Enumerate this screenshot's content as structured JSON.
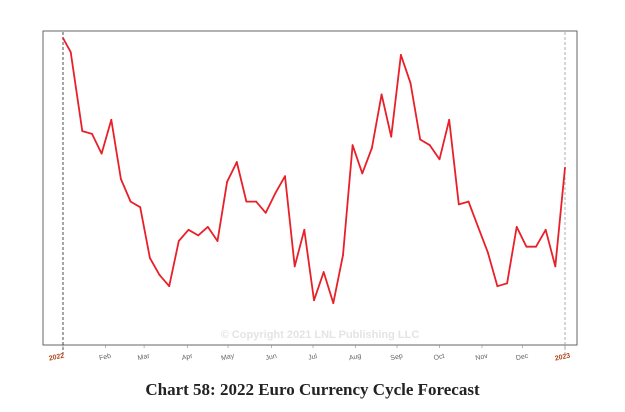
{
  "caption": "Chart 58: 2022 Euro Currency Cycle Forecast",
  "watermark": "© Copyright 2021 LNL Publishing LLC",
  "colors": {
    "line": "#e8202a",
    "year_label": "#b0441a",
    "month_label": "#666666",
    "frame": "#666666"
  },
  "chart_data": {
    "type": "line",
    "title": "Chart 58: 2022 Euro Currency Cycle Forecast",
    "xlabel": "",
    "ylabel": "",
    "y_axis_visible": false,
    "ylim": [
      0,
      100
    ],
    "grid": false,
    "legend": "none",
    "x_ticks": [
      "2022",
      "Feb",
      "Mar",
      "Apr",
      "May",
      "Jun",
      "Jul",
      "Aug",
      "Sep",
      "Oct",
      "Nov",
      "Dec",
      "2023"
    ],
    "x_tick_weeks": [
      0,
      4.4,
      8.4,
      12.9,
      17.1,
      21.6,
      25.9,
      30.3,
      34.6,
      39,
      43.4,
      47.6,
      52
    ],
    "start_end_markers": [
      "2022",
      "2023"
    ],
    "series": [
      {
        "values": [
          {
            "x": 0,
            "y": 100
          },
          {
            "x": 0.8,
            "y": 95
          },
          {
            "x": 2,
            "y": 67
          },
          {
            "x": 3,
            "y": 66
          },
          {
            "x": 4,
            "y": 59
          },
          {
            "x": 5,
            "y": 71
          },
          {
            "x": 6,
            "y": 50
          },
          {
            "x": 7,
            "y": 42
          },
          {
            "x": 8,
            "y": 40
          },
          {
            "x": 9,
            "y": 22
          },
          {
            "x": 10,
            "y": 16
          },
          {
            "x": 11,
            "y": 12
          },
          {
            "x": 12,
            "y": 28
          },
          {
            "x": 13,
            "y": 32
          },
          {
            "x": 14,
            "y": 30
          },
          {
            "x": 15,
            "y": 33
          },
          {
            "x": 16,
            "y": 28
          },
          {
            "x": 17,
            "y": 49
          },
          {
            "x": 18,
            "y": 56
          },
          {
            "x": 19,
            "y": 42
          },
          {
            "x": 20,
            "y": 42
          },
          {
            "x": 21,
            "y": 38
          },
          {
            "x": 22,
            "y": 45
          },
          {
            "x": 23,
            "y": 51
          },
          {
            "x": 24,
            "y": 19
          },
          {
            "x": 25,
            "y": 32
          },
          {
            "x": 26,
            "y": 7
          },
          {
            "x": 27,
            "y": 17
          },
          {
            "x": 28,
            "y": 6
          },
          {
            "x": 29,
            "y": 23
          },
          {
            "x": 30,
            "y": 62
          },
          {
            "x": 31,
            "y": 52
          },
          {
            "x": 32,
            "y": 61
          },
          {
            "x": 33,
            "y": 80
          },
          {
            "x": 34,
            "y": 65
          },
          {
            "x": 35,
            "y": 94
          },
          {
            "x": 36,
            "y": 84
          },
          {
            "x": 37,
            "y": 64
          },
          {
            "x": 38,
            "y": 62
          },
          {
            "x": 39,
            "y": 57
          },
          {
            "x": 40,
            "y": 71
          },
          {
            "x": 41,
            "y": 41
          },
          {
            "x": 42,
            "y": 42
          },
          {
            "x": 43,
            "y": 33
          },
          {
            "x": 44,
            "y": 24
          },
          {
            "x": 45,
            "y": 12
          },
          {
            "x": 46,
            "y": 13
          },
          {
            "x": 47,
            "y": 33
          },
          {
            "x": 48,
            "y": 26
          },
          {
            "x": 49,
            "y": 26
          },
          {
            "x": 50,
            "y": 32
          },
          {
            "x": 51,
            "y": 19
          },
          {
            "x": 52,
            "y": 54
          }
        ]
      }
    ]
  }
}
